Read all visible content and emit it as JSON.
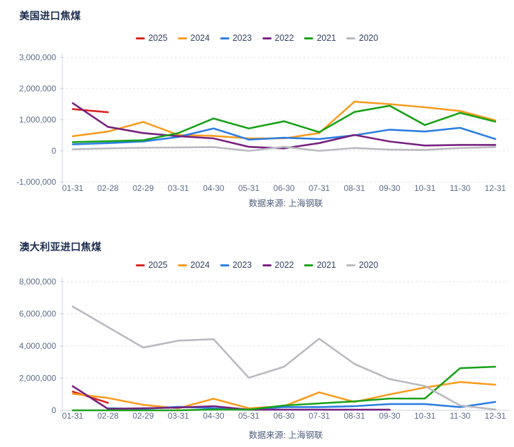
{
  "chart_data": [
    {
      "type": "line",
      "title": "美国进口焦煤",
      "source": "数据来源: 上海钢联",
      "legend_position": "top-center",
      "grid": "horizontal-dashed",
      "categories": [
        "01-31",
        "02-28",
        "02-29",
        "03-31",
        "04-30",
        "05-31",
        "06-30",
        "07-31",
        "08-31",
        "09-30",
        "10-31",
        "11-30",
        "12-31"
      ],
      "y_ticks": {
        "labels": [
          "3,000,000",
          "2,000,000",
          "1,000,000",
          "0",
          "-1,000,000"
        ],
        "values": [
          3000000,
          2000000,
          1000000,
          0,
          -1000000
        ]
      },
      "ylim": [
        -1300000,
        3300000
      ],
      "series": [
        {
          "name": "2025",
          "color": "#d8241f",
          "values": [
            1340000,
            1240000,
            null,
            null,
            null,
            null,
            null,
            null,
            null,
            null,
            null,
            null,
            null
          ]
        },
        {
          "name": "2024",
          "color": "#f99b1d",
          "values": [
            470000,
            620000,
            930000,
            510000,
            480000,
            400000,
            400000,
            570000,
            1580000,
            1500000,
            1400000,
            1280000,
            980000
          ]
        },
        {
          "name": "2023",
          "color": "#2b7de1",
          "values": [
            210000,
            250000,
            300000,
            450000,
            720000,
            360000,
            420000,
            380000,
            500000,
            680000,
            620000,
            740000,
            380000
          ]
        },
        {
          "name": "2022",
          "color": "#76217e",
          "values": [
            1530000,
            770000,
            570000,
            470000,
            400000,
            130000,
            80000,
            250000,
            510000,
            300000,
            170000,
            190000,
            190000
          ]
        },
        {
          "name": "2021",
          "color": "#18a118",
          "values": [
            280000,
            310000,
            340000,
            570000,
            1040000,
            720000,
            950000,
            600000,
            1250000,
            1450000,
            830000,
            1220000,
            940000
          ]
        },
        {
          "name": "2020",
          "color": "#b9b9bf",
          "values": [
            50000,
            80000,
            100000,
            110000,
            120000,
            0,
            130000,
            0,
            90000,
            40000,
            30000,
            90000,
            120000
          ]
        }
      ]
    },
    {
      "type": "line",
      "title": "澳大利亚进口焦煤",
      "source": "数据来源: 上海钢联",
      "legend_position": "top-center",
      "grid": "horizontal-dashed",
      "categories": [
        "01-31",
        "02-28",
        "02-29",
        "03-31",
        "04-30",
        "05-31",
        "06-30",
        "07-31",
        "08-31",
        "09-30",
        "10-31",
        "11-30",
        "12-31"
      ],
      "y_ticks": {
        "labels": [
          "8,000,000",
          "6,000,000",
          "4,000,000",
          "2,000,000",
          "0"
        ],
        "values": [
          8000000,
          6000000,
          4000000,
          2000000,
          0
        ]
      },
      "ylim": [
        -450000,
        8300000
      ],
      "series": [
        {
          "name": "2025",
          "color": "#d8241f",
          "values": [
            1160000,
            470000,
            null,
            null,
            null,
            null,
            null,
            null,
            null,
            null,
            null,
            null,
            null
          ]
        },
        {
          "name": "2024",
          "color": "#f99b1d",
          "values": [
            1030000,
            770000,
            340000,
            130000,
            720000,
            130000,
            260000,
            1120000,
            520000,
            990000,
            1420000,
            1760000,
            1590000
          ]
        },
        {
          "name": "2023",
          "color": "#2b7de1",
          "values": [
            null,
            130000,
            90000,
            220000,
            130000,
            40000,
            200000,
            200000,
            260000,
            390000,
            390000,
            200000,
            520000
          ]
        },
        {
          "name": "2022",
          "color": "#76217e",
          "values": [
            1500000,
            90000,
            130000,
            170000,
            260000,
            40000,
            40000,
            40000,
            40000,
            40000,
            null,
            null,
            null
          ]
        },
        {
          "name": "2021",
          "color": "#18a118",
          "values": [
            0,
            0,
            0,
            0,
            50000,
            40000,
            300000,
            430000,
            560000,
            730000,
            730000,
            2620000,
            2710000
          ]
        },
        {
          "name": "2020",
          "color": "#b9b9bf",
          "values": [
            6450000,
            null,
            3900000,
            4330000,
            4420000,
            2020000,
            2710000,
            4450000,
            2880000,
            1940000,
            1510000,
            300000,
            50000
          ]
        }
      ]
    }
  ],
  "colors": {
    "title_text": "#1b2b4d",
    "axis_text": "#5c6b85",
    "legend_text": "#33415e",
    "source_text": "#4f5e7d",
    "gridline": "#e2e4ea",
    "axis_line": "#ccd0d9",
    "background": "#ffffff"
  }
}
